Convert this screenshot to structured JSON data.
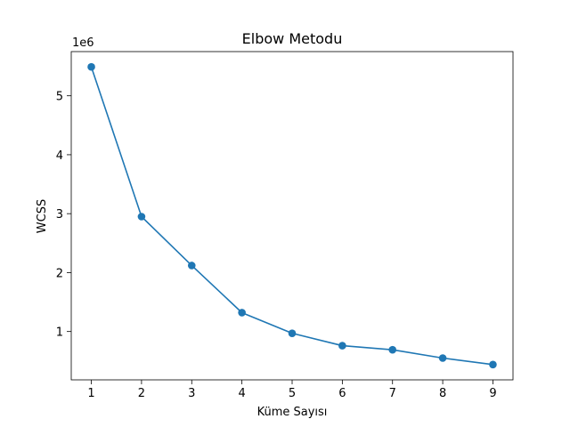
{
  "chart_data": {
    "type": "line",
    "title": "Elbow Metodu",
    "xlabel": "Küme Sayısı",
    "ylabel": "WCSS",
    "y_offset_label": "1e6",
    "x": [
      1,
      2,
      3,
      4,
      5,
      6,
      7,
      8,
      9
    ],
    "series": [
      {
        "values": [
          5.49,
          2.95,
          2.12,
          1.32,
          0.97,
          0.76,
          0.69,
          0.55,
          0.44
        ],
        "color": "#1f77b4",
        "marker": "circle"
      }
    ],
    "xlim": [
      0.6,
      9.4
    ],
    "ylim": [
      0.18,
      5.75
    ],
    "xticks": [
      1,
      2,
      3,
      4,
      5,
      6,
      7,
      8,
      9
    ],
    "yticks": [
      1,
      2,
      3,
      4,
      5
    ],
    "grid": false,
    "legend": "none"
  }
}
